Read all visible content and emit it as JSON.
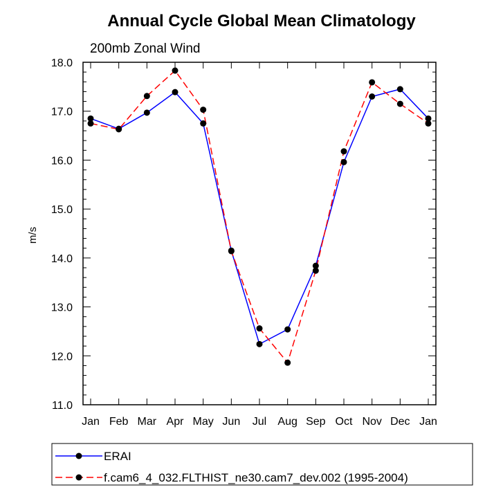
{
  "chart_data": {
    "type": "line",
    "title": "Annual Cycle Global Mean Climatology",
    "subtitle": "200mb Zonal Wind",
    "xlabel": "",
    "ylabel": "m/s",
    "categories": [
      "Jan",
      "Feb",
      "Mar",
      "Apr",
      "May",
      "Jun",
      "Jul",
      "Aug",
      "Sep",
      "Oct",
      "Nov",
      "Dec",
      "Jan"
    ],
    "ylim": [
      11.0,
      18.0
    ],
    "yticks": [
      "11.0",
      "12.0",
      "13.0",
      "14.0",
      "15.0",
      "16.0",
      "17.0",
      "18.0"
    ],
    "legend_position": "bottom",
    "series": [
      {
        "name": "ERAI",
        "color": "#0000ff",
        "dash": "solid",
        "values": [
          16.85,
          16.64,
          16.97,
          17.39,
          16.75,
          14.15,
          12.24,
          12.54,
          13.84,
          15.96,
          17.3,
          17.45,
          16.85
        ]
      },
      {
        "name": "f.cam6_4_032.FLTHIST_ne30.cam7_dev.002 (1995-2004)",
        "color": "#ff0000",
        "dash": "dashed",
        "values": [
          16.75,
          16.63,
          17.31,
          17.83,
          17.03,
          14.14,
          12.56,
          11.86,
          13.74,
          16.18,
          17.59,
          17.15,
          16.75
        ]
      }
    ]
  }
}
